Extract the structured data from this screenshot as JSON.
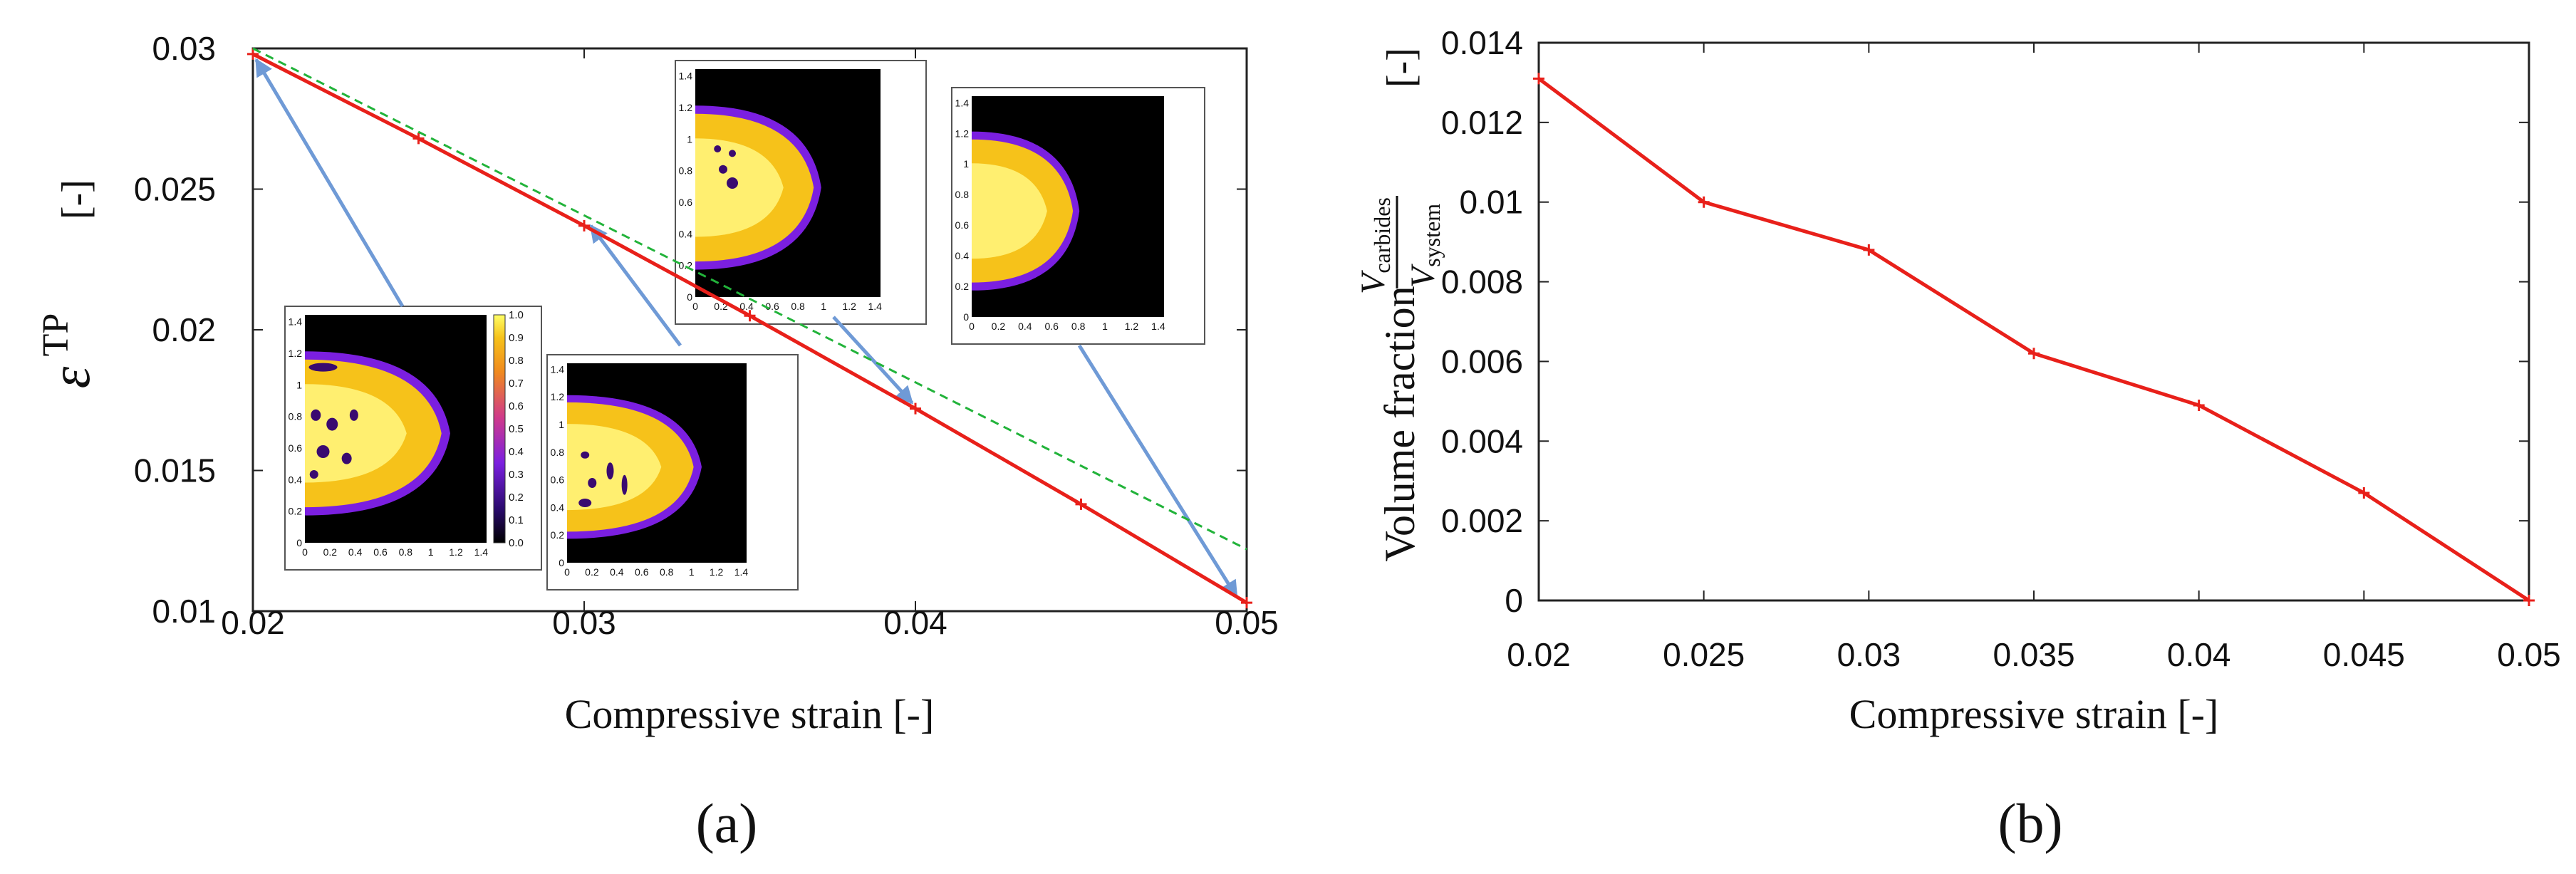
{
  "chart_data": [
    {
      "panel": "(a)",
      "type": "line",
      "xlabel": "Compressive strain [-]",
      "ylabel": "ε^TP [-]",
      "ylabel_symbol": "ε",
      "ylabel_superscript": "TP",
      "ylabel_unit": "[-]",
      "xlim": [
        0.02,
        0.05
      ],
      "ylim": [
        0.01,
        0.03
      ],
      "x_ticks": [
        "0.02",
        "0.03",
        "0.04",
        "0.05"
      ],
      "y_ticks": [
        "0.01",
        "0.015",
        "0.02",
        "0.025",
        "0.03"
      ],
      "series": [
        {
          "name": "solid",
          "color": "#e8201a",
          "style": "solid",
          "markers": true,
          "x": [
            0.02,
            0.025,
            0.03,
            0.035,
            0.04,
            0.045,
            0.05
          ],
          "y": [
            0.0298,
            0.0268,
            0.0237,
            0.0205,
            0.0172,
            0.0138,
            0.0103
          ]
        },
        {
          "name": "dashed",
          "color": "#22b33a",
          "style": "dashed",
          "markers": false,
          "x": [
            0.02,
            0.05
          ],
          "y": [
            0.03,
            0.0122
          ]
        }
      ],
      "insets": [
        {
          "id": "inset-1",
          "strain": 0.02,
          "arrow_target": [
            0.0201,
            0.0296
          ],
          "x_ticks": [
            "0",
            "0.2",
            "0.4",
            "0.6",
            "0.8",
            "1",
            "1.2",
            "1.4"
          ],
          "y_ticks": [
            "0",
            "0.2",
            "0.4",
            "0.6",
            "0.8",
            "1",
            "1.2",
            "1.4"
          ],
          "colorbar_ticks": [
            "1.0",
            "0.9",
            "0.8",
            "0.7",
            "0.6",
            "0.5",
            "0.4",
            "0.3",
            "0.2",
            "0.1",
            "0.0"
          ]
        },
        {
          "id": "inset-2",
          "strain": 0.03,
          "arrow_target": [
            0.0302,
            0.0237
          ],
          "x_ticks": [
            "0",
            "0.2",
            "0.4",
            "0.6",
            "0.8",
            "1",
            "1.2",
            "1.4"
          ],
          "y_ticks": [
            "0",
            "0.2",
            "0.4",
            "0.6",
            "0.8",
            "1",
            "1.2",
            "1.4"
          ]
        },
        {
          "id": "inset-3",
          "strain": 0.04,
          "arrow_target": [
            0.0399,
            0.0174
          ],
          "x_ticks": [
            "0",
            "0.2",
            "0.4",
            "0.6",
            "0.8",
            "1",
            "1.2",
            "1.4"
          ],
          "y_ticks": [
            "0",
            "0.2",
            "0.4",
            "0.6",
            "0.8",
            "1",
            "1.2",
            "1.4"
          ]
        },
        {
          "id": "inset-4",
          "strain": 0.05,
          "arrow_target": [
            0.0497,
            0.0105
          ],
          "x_ticks": [
            "0",
            "0.2",
            "0.4",
            "0.6",
            "0.8",
            "1",
            "1.2",
            "1.4"
          ],
          "y_ticks": [
            "0",
            "0.2",
            "0.4",
            "0.6",
            "0.8",
            "1",
            "1.2",
            "1.4"
          ]
        }
      ]
    },
    {
      "panel": "(b)",
      "type": "line",
      "xlabel": "Compressive strain [-]",
      "ylabel": "Volume fraction V_carbides / V_system [-]",
      "ylabel_text": "Volume fraction",
      "ylabel_numerator": "V",
      "ylabel_numerator_sub": "carbides",
      "ylabel_denominator": "V",
      "ylabel_denominator_sub": "system",
      "ylabel_unit": "[-]",
      "xlim": [
        0.02,
        0.05
      ],
      "ylim": [
        0,
        0.014
      ],
      "x_ticks": [
        "0.02",
        "0.025",
        "0.03",
        "0.035",
        "0.04",
        "0.045",
        "0.05"
      ],
      "y_ticks": [
        "0",
        "0.002",
        "0.004",
        "0.006",
        "0.008",
        "0.01",
        "0.012",
        "0.014"
      ],
      "series": [
        {
          "name": "volume fraction",
          "color": "#e8201a",
          "style": "solid",
          "markers": true,
          "x": [
            0.02,
            0.025,
            0.03,
            0.035,
            0.04,
            0.045,
            0.05
          ],
          "y": [
            0.0131,
            0.01,
            0.0088,
            0.0062,
            0.0049,
            0.0027,
            0.0
          ]
        }
      ]
    }
  ],
  "captions": {
    "a": "(a)",
    "b": "(b)"
  }
}
